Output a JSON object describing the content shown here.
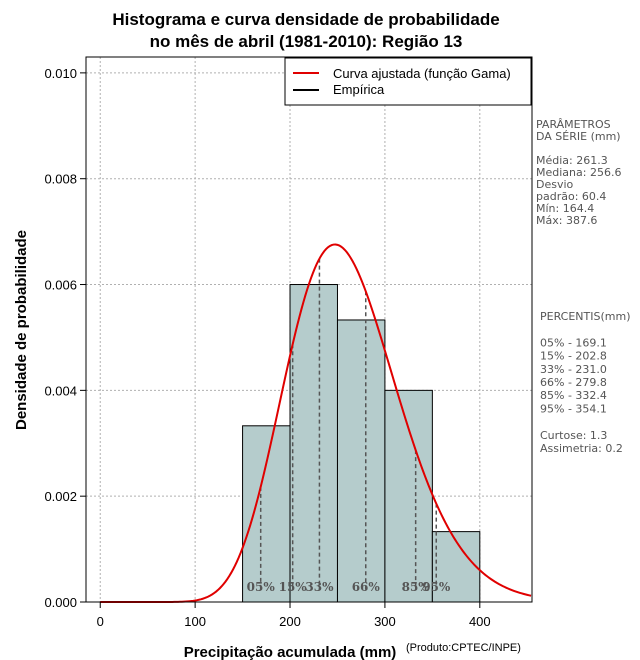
{
  "chart_data": {
    "type": "histogram",
    "title_lines": [
      "Histograma e curva densidade de probabilidade",
      "no mês de abril (1981-2010): Região 13"
    ],
    "xlabel": "Precipitação acumulada (mm)",
    "ylabel": "Densidade de probabilidade",
    "credit": "(Produto:CPTEC/INPE)",
    "xlim": [
      -15,
      455
    ],
    "ylim": [
      0,
      0.0103
    ],
    "x_ticks": [
      0,
      100,
      200,
      300,
      400
    ],
    "y_ticks": [
      "0.000",
      "0.002",
      "0.004",
      "0.006",
      "0.008",
      "0.010"
    ],
    "grid": true,
    "bins": [
      {
        "start": 150,
        "end": 200,
        "density": 0.00333
      },
      {
        "start": 200,
        "end": 250,
        "density": 0.006
      },
      {
        "start": 250,
        "end": 300,
        "density": 0.00533
      },
      {
        "start": 300,
        "end": 350,
        "density": 0.004
      },
      {
        "start": 350,
        "end": 400,
        "density": 0.00133
      }
    ],
    "bar_color": "#b5cccc",
    "curve": {
      "name": "Curva ajustada (função Gama)",
      "color": "#e00000",
      "mean": 261.3,
      "sd": 60.4
    },
    "empirical_name": "Empírica",
    "percentile_lines": [
      {
        "label": "05%",
        "value": 169.1
      },
      {
        "label": "15%",
        "value": 202.8
      },
      {
        "label": "33%",
        "value": 231.0
      },
      {
        "label": "66%",
        "value": 279.8
      },
      {
        "label": "85%",
        "value": 332.4
      },
      {
        "label": "95%",
        "value": 354.1
      }
    ]
  },
  "side_panel": {
    "params_lines": [
      "PARÂMETROS",
      " DA SÉRIE (mm)",
      "",
      "Média:  261.3",
      "Mediana:  256.6",
      "Desvio",
      "padrão:  60.4",
      "Mín:  164.4",
      "Máx:  387.6"
    ],
    "percentiles_lines": [
      "PERCENTIS(mm)",
      "",
      "05% -  169.1",
      "15% -  202.8",
      "33% -  231.0",
      "66% -  279.8",
      "85% -  332.4",
      "95% -  354.1",
      "",
      "Curtose:  1.3",
      "Assimetria:  0.2"
    ]
  }
}
